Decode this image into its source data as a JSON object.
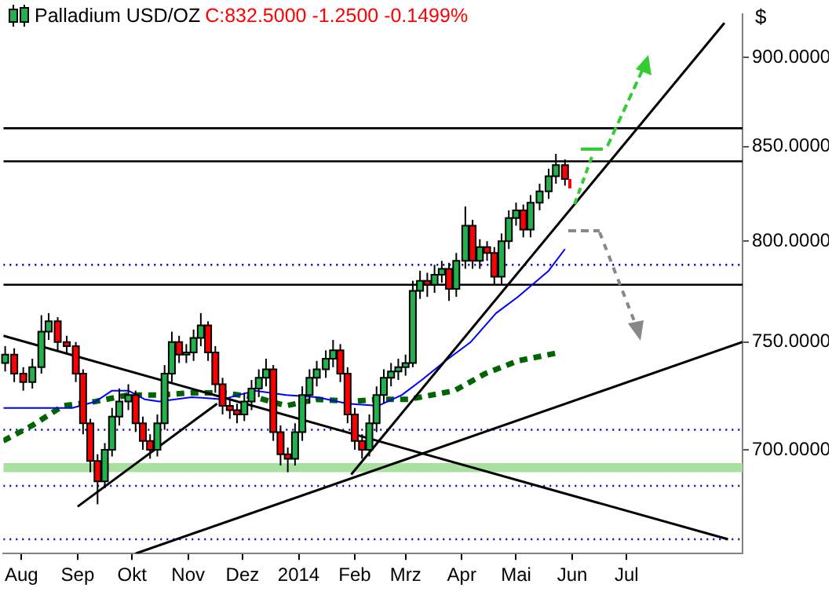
{
  "chart_data": {
    "type": "candlestick",
    "title": "Palladium USD/OZ",
    "subtitle": "C:832.5000 -1.2500 -0.1499%",
    "ylabel": "$",
    "log": "y",
    "grid": false,
    "ylim": [
      655,
      925
    ],
    "yticks": [
      {
        "value": 700,
        "label": "700.0000"
      },
      {
        "value": 750,
        "label": "750.0000"
      },
      {
        "value": 800,
        "label": "800.0000"
      },
      {
        "value": 850,
        "label": "850.0000"
      },
      {
        "value": 900,
        "label": "900.0000"
      }
    ],
    "xlim": [
      "2013-07-22",
      "2014-09-03"
    ],
    "xticks": [
      {
        "value": "2013-08-01",
        "label": "Aug"
      },
      {
        "value": "2013-09-01",
        "label": "Sep"
      },
      {
        "value": "2013-10-01",
        "label": "Okt"
      },
      {
        "value": "2013-11-01",
        "label": "Nov"
      },
      {
        "value": "2013-12-01",
        "label": "Dez"
      },
      {
        "value": "2014-01-01",
        "label": "2014"
      },
      {
        "value": "2014-02-01",
        "label": "Feb"
      },
      {
        "value": "2014-03-01",
        "label": "Mrz"
      },
      {
        "value": "2014-04-01",
        "label": "Apr"
      },
      {
        "value": "2014-05-01",
        "label": "Mai"
      },
      {
        "value": "2014-06-01",
        "label": "Jun"
      },
      {
        "value": "2014-07-01",
        "label": "Jul"
      }
    ],
    "ref_lines": [
      {
        "axis": "y",
        "value": 860,
        "color": "#000000",
        "line_style": "solid"
      },
      {
        "axis": "y",
        "value": 842,
        "color": "#000000",
        "line_style": "solid"
      },
      {
        "axis": "y",
        "value": 788,
        "color": "#0000cc",
        "line_style": "dotted"
      },
      {
        "axis": "y",
        "value": 778,
        "color": "#000000",
        "line_style": "solid"
      },
      {
        "axis": "y",
        "value": 709,
        "color": "#0000cc",
        "line_style": "dotted"
      },
      {
        "axis": "y",
        "value": 684,
        "color": "#0000cc",
        "line_style": "dotted"
      },
      {
        "axis": "y",
        "value": 661,
        "color": "#0000cc",
        "line_style": "dotted"
      }
    ],
    "bands": [
      {
        "axis": "y",
        "from": 690,
        "to": 694,
        "color": "#a8e0a0"
      }
    ],
    "x": [
      "2013-07-23",
      "2013-07-28",
      "2013-08-02",
      "2013-08-07",
      "2013-08-12",
      "2013-08-16",
      "2013-08-21",
      "2013-08-26",
      "2013-08-31",
      "2013-09-04",
      "2013-09-08",
      "2013-09-12",
      "2013-09-16",
      "2013-09-20",
      "2013-09-24",
      "2013-09-29",
      "2013-10-03",
      "2013-10-07",
      "2013-10-11",
      "2013-10-15",
      "2013-10-19",
      "2013-10-23",
      "2013-10-27",
      "2013-10-31",
      "2013-11-04",
      "2013-11-08",
      "2013-11-12",
      "2013-11-16",
      "2013-11-20",
      "2013-11-24",
      "2013-11-28",
      "2013-12-02",
      "2013-12-06",
      "2013-12-10",
      "2013-12-14",
      "2013-12-18",
      "2013-12-22",
      "2013-12-26",
      "2013-12-30",
      "2014-01-03",
      "2014-01-07",
      "2014-01-11",
      "2014-01-16",
      "2014-01-20",
      "2014-01-24",
      "2014-01-28",
      "2014-02-01",
      "2014-02-05",
      "2014-02-09",
      "2014-02-13",
      "2014-02-17",
      "2014-02-21",
      "2014-02-25",
      "2014-03-01",
      "2014-03-05",
      "2014-03-09",
      "2014-03-13",
      "2014-03-17",
      "2014-03-21",
      "2014-03-25",
      "2014-03-29",
      "2014-04-03",
      "2014-04-07",
      "2014-04-11",
      "2014-04-15",
      "2014-04-19",
      "2014-04-23",
      "2014-04-27",
      "2014-05-01",
      "2014-05-05",
      "2014-05-09",
      "2014-05-14",
      "2014-05-19",
      "2014-05-23",
      "2014-05-28"
    ],
    "ohlc": [
      [
        740,
        748,
        736,
        744
      ],
      [
        744,
        747,
        731,
        735
      ],
      [
        735,
        738,
        727,
        731
      ],
      [
        731,
        742,
        728,
        738
      ],
      [
        738,
        763,
        735,
        755
      ],
      [
        755,
        764,
        751,
        760
      ],
      [
        760,
        762,
        746,
        750
      ],
      [
        750,
        753,
        744,
        748
      ],
      [
        748,
        750,
        731,
        735
      ],
      [
        735,
        737,
        707,
        712
      ],
      [
        712,
        714,
        690,
        695
      ],
      [
        695,
        698,
        676,
        686
      ],
      [
        686,
        703,
        683,
        700
      ],
      [
        700,
        719,
        697,
        715
      ],
      [
        715,
        728,
        711,
        722
      ],
      [
        722,
        730,
        718,
        725
      ],
      [
        725,
        727,
        708,
        712
      ],
      [
        712,
        715,
        700,
        704
      ],
      [
        704,
        707,
        696,
        700
      ],
      [
        700,
        716,
        697,
        712
      ],
      [
        712,
        739,
        709,
        735
      ],
      [
        735,
        755,
        731,
        750
      ],
      [
        750,
        753,
        740,
        744
      ],
      [
        744,
        749,
        740,
        745
      ],
      [
        745,
        756,
        741,
        752
      ],
      [
        752,
        764,
        748,
        758
      ],
      [
        758,
        760,
        741,
        745
      ],
      [
        745,
        748,
        726,
        730
      ],
      [
        730,
        733,
        716,
        720
      ],
      [
        720,
        723,
        714,
        718
      ],
      [
        718,
        721,
        712,
        716
      ],
      [
        716,
        726,
        713,
        722
      ],
      [
        722,
        732,
        718,
        728
      ],
      [
        728,
        737,
        724,
        733
      ],
      [
        733,
        742,
        729,
        737
      ],
      [
        737,
        739,
        704,
        708
      ],
      [
        708,
        711,
        693,
        698
      ],
      [
        698,
        701,
        690,
        696
      ],
      [
        696,
        712,
        693,
        708
      ],
      [
        708,
        729,
        704,
        725
      ],
      [
        725,
        737,
        721,
        733
      ],
      [
        733,
        741,
        729,
        737
      ],
      [
        737,
        746,
        733,
        742
      ],
      [
        742,
        751,
        738,
        746
      ],
      [
        746,
        749,
        731,
        735
      ],
      [
        735,
        738,
        712,
        716
      ],
      [
        716,
        719,
        700,
        704
      ],
      [
        704,
        707,
        696,
        700
      ],
      [
        700,
        716,
        697,
        712
      ],
      [
        712,
        729,
        708,
        725
      ],
      [
        725,
        737,
        721,
        733
      ],
      [
        733,
        740,
        729,
        736
      ],
      [
        736,
        742,
        732,
        738
      ],
      [
        738,
        744,
        734,
        740
      ],
      [
        740,
        780,
        738,
        775
      ],
      [
        775,
        785,
        771,
        780
      ],
      [
        780,
        784,
        772,
        778
      ],
      [
        778,
        788,
        774,
        783
      ],
      [
        783,
        790,
        779,
        786
      ],
      [
        786,
        789,
        770,
        776
      ],
      [
        776,
        794,
        772,
        790
      ],
      [
        790,
        818,
        786,
        808
      ],
      [
        808,
        811,
        786,
        790
      ],
      [
        790,
        801,
        786,
        797
      ],
      [
        797,
        800,
        790,
        794
      ],
      [
        794,
        797,
        778,
        782
      ],
      [
        782,
        804,
        778,
        800
      ],
      [
        800,
        816,
        796,
        812
      ],
      [
        812,
        820,
        808,
        816
      ],
      [
        816,
        819,
        802,
        806
      ],
      [
        806,
        824,
        802,
        820
      ],
      [
        820,
        830,
        816,
        826
      ],
      [
        826,
        838,
        822,
        834
      ],
      [
        834,
        846,
        830,
        840
      ],
      [
        840,
        843,
        829,
        832.5
      ]
    ],
    "series": [
      {
        "type": "line",
        "color": "#000000",
        "line_style": "solid",
        "x": [
          "2013-07-22",
          "2014-08-26"
        ],
        "values": [
          753,
          661
        ]
      },
      {
        "type": "line",
        "color": "#000000",
        "line_style": "solid",
        "x": [
          "2013-10-03",
          "2014-09-03"
        ],
        "values": [
          655,
          750
        ]
      },
      {
        "type": "line",
        "color": "#000000",
        "line_style": "solid",
        "x": [
          "2014-01-30",
          "2014-08-24"
        ],
        "values": [
          689,
          920
        ]
      },
      {
        "type": "line",
        "color": "#000000",
        "line_style": "solid",
        "x": [
          "2013-09-01",
          "2013-11-17"
        ],
        "values": [
          675,
          721
        ]
      },
      {
        "type": "line",
        "color": "#0000ff",
        "line_style": "solid",
        "x": [
          "2013-07-22",
          "2013-08-07",
          "2013-08-29",
          "2013-09-11",
          "2013-09-20",
          "2013-09-29",
          "2013-10-08",
          "2013-10-16",
          "2013-11-03",
          "2013-11-20",
          "2013-12-08",
          "2013-12-25",
          "2014-01-11",
          "2014-01-28",
          "2014-02-14",
          "2014-02-27",
          "2014-03-10",
          "2014-03-23",
          "2014-04-06",
          "2014-04-20",
          "2014-05-02",
          "2014-05-19",
          "2014-05-28"
        ],
        "values": [
          719,
          719,
          719,
          722,
          727,
          727,
          723,
          722,
          724,
          723,
          727,
          725,
          724,
          721,
          720,
          725,
          732,
          741,
          750,
          764,
          772,
          785,
          796
        ]
      },
      {
        "type": "line",
        "color": "#006400",
        "line_style": "dashed",
        "x": [
          "2013-07-22",
          "2013-08-07",
          "2013-08-24",
          "2013-09-11",
          "2013-09-29",
          "2013-10-16",
          "2013-11-03",
          "2013-11-20",
          "2013-12-08",
          "2013-12-25",
          "2014-01-11",
          "2014-01-30",
          "2014-02-14",
          "2014-03-03",
          "2014-03-28",
          "2014-04-14",
          "2014-05-02",
          "2014-05-25"
        ],
        "values": [
          704,
          711,
          720,
          722,
          725,
          725,
          726,
          726,
          724,
          720,
          723,
          722,
          723,
          723,
          727,
          735,
          741,
          745
        ]
      }
    ]
  }
}
